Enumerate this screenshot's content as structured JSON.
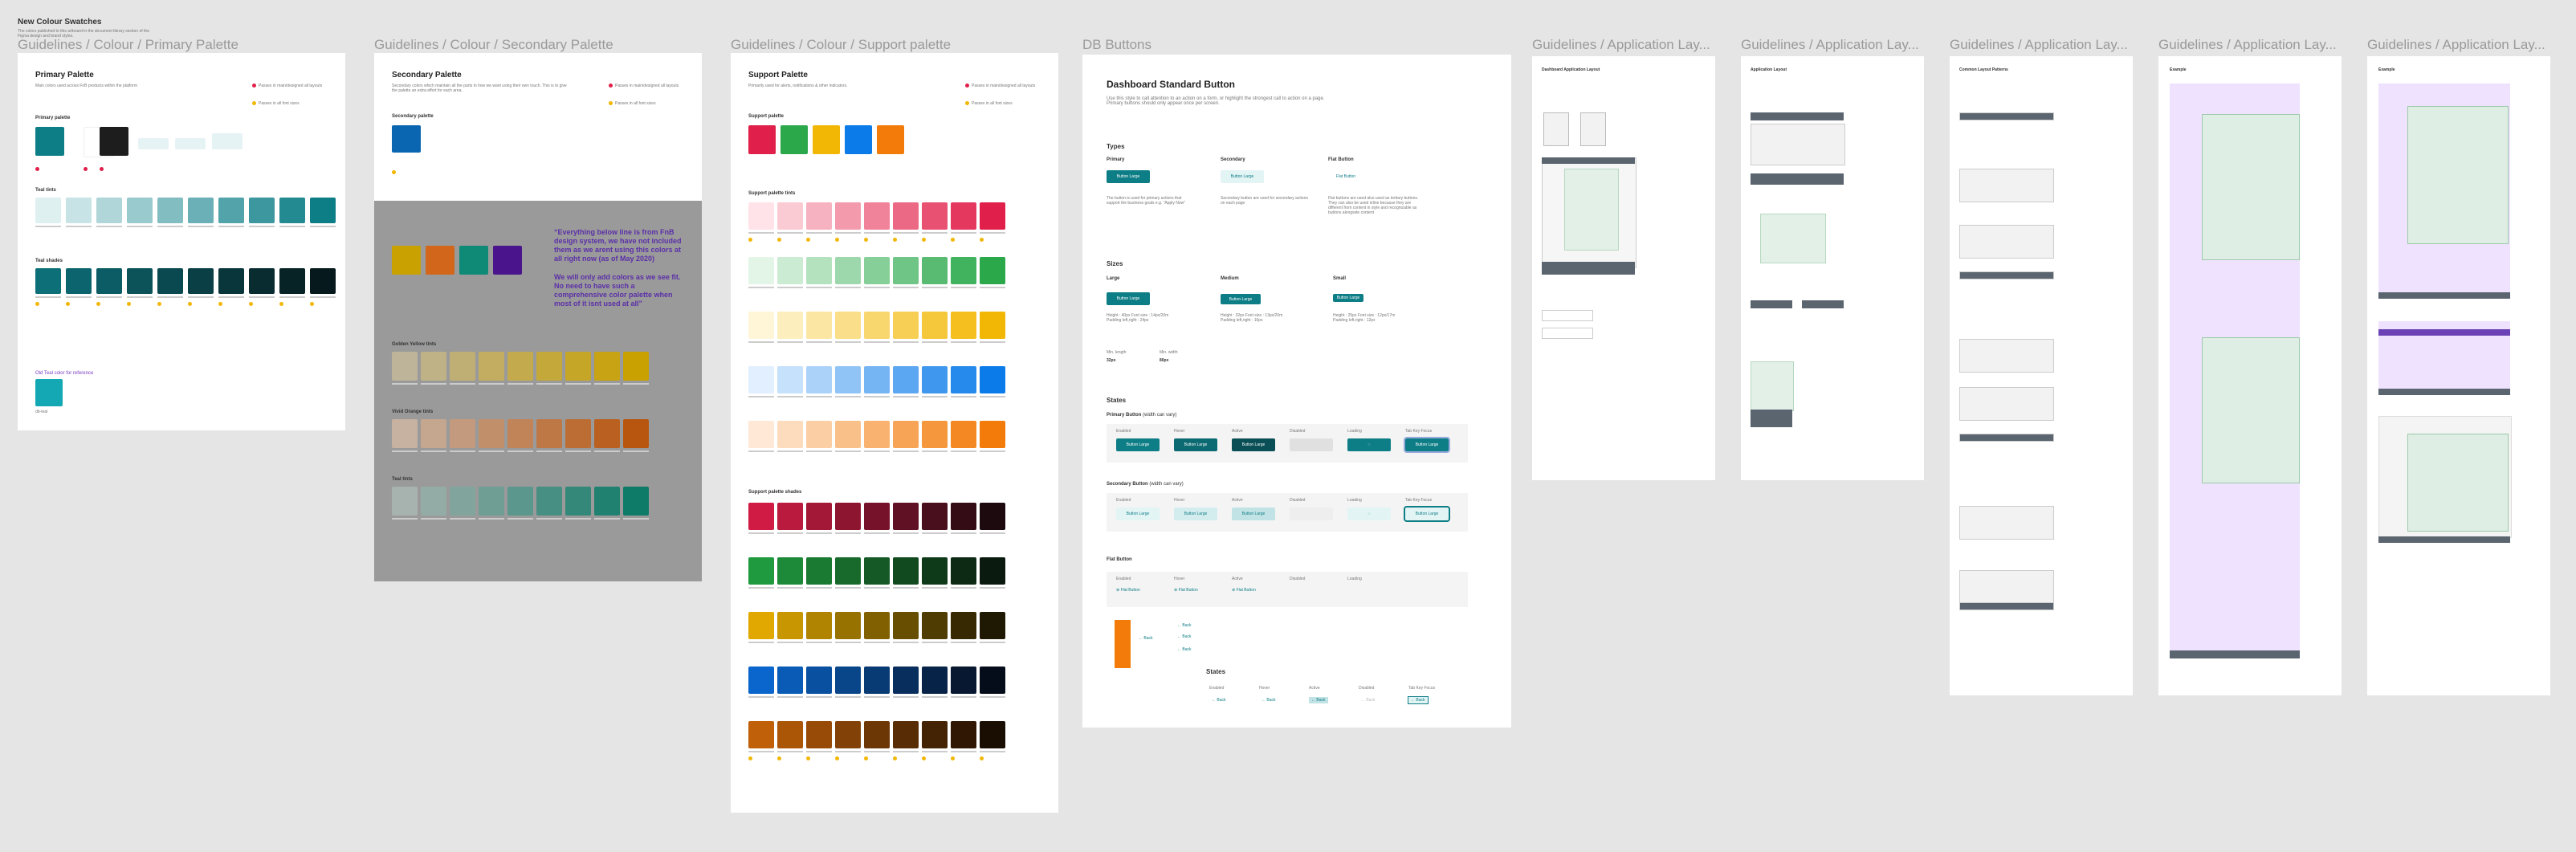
{
  "page": {
    "title": "New Colour Swatches",
    "subtitle_line1": "The colors published to this artboard in the document library section of the",
    "subtitle_line2": "Figma design and brand styles."
  },
  "frames": {
    "primary": {
      "label": "Guidelines / Colour / Primary Palette",
      "title": "Primary Palette",
      "desc": "Main colors used across FnB products within the platform",
      "primary_label": "Primary palette",
      "tints_label": "Teal tints",
      "shades_label": "Teal shades",
      "old_label": "Old Teal color for reference",
      "old_name": "db-teal",
      "legend_a": "Passes in main/designed all layouts",
      "legend_b": "Passes in all font sizes"
    },
    "secondary": {
      "label": "Guidelines / Colour / Secondary Palette",
      "title": "Secondary Palette",
      "desc": "Secondary colors which maintain all the parts in how we want using their own touch. This is to give the palette an extra effort for each area.",
      "palette_label": "Secondary palette",
      "quote_1": "“Everything below line is from FnB design system, we have not included them as we arent using this colors at all right now (as of May 2020)",
      "quote_2": "We will only add colors as we see fit. No need to have such a comprehensive color palette when most of it isnt used at all”",
      "golden_label": "Golden Yellow tints",
      "vivid_label": "Vivid Orange tints",
      "teal_label": "Teal tints",
      "legend_a": "Passes in main/designed all layouts",
      "legend_b": "Passes in all font sizes"
    },
    "support": {
      "label": "Guidelines / Colour / Support palette",
      "title": "Support Palette",
      "desc": "Primarily used for alerts, notifications & other indicators.",
      "palette_label": "Support palette",
      "tints_label": "Support palette tints",
      "shades_label": "Support palette shades",
      "legend_a": "Passes in main/designed all layouts",
      "legend_b": "Passes in all font sizes"
    },
    "buttons": {
      "label": "DB Buttons",
      "title": "Dashboard Standard Button",
      "desc": "Use this style to call attention to an action on a form, or highlight the strongest call to action on a page. Primary buttons should only appear once per screen.",
      "types_label": "Types",
      "type_primary": "Primary",
      "type_secondary": "Secondary",
      "type_flat": "Flat Button",
      "type_primary_desc": "The button is used for primary actions that support the business goals e.g. \"Apply Now\"",
      "type_secondary_desc": "Secondary button are used for secondary actions on each page",
      "type_flat_desc": "Flat buttons are used also used as tertiary buttons. They can also be used inline because they are different from content in style and recognizable as buttons alongside content",
      "sizes_label": "Sizes",
      "size_large": "Large",
      "size_medium": "Medium",
      "size_small": "Small",
      "size_large_spec": "Height : 40px Font size : 14px/20m Padding left,right : 24px",
      "size_medium_spec": "Height : 32px Font size : 13px/20m Padding left,right : 16px",
      "size_small_spec": "Height : 25px Font size : 12px/17m Padding left,right : 12px",
      "min_length": "Min. length",
      "max_width": "Min. width",
      "min_length_val": "32px",
      "max_width_val": "80px",
      "states_label": "States",
      "primary_states": "Primary Button",
      "primary_states_note": "(width can vary)",
      "secondary_states": "Secondary Button",
      "secondary_states_note": "(width can vary)",
      "flat_states": "Flat Button",
      "state_enabled": "Enabled",
      "state_hover": "Hover",
      "state_active": "Active",
      "state_disabled": "Disabled",
      "state_loading": "Loading",
      "state_tab": "Tab Key Focus",
      "button_label": "Button Large",
      "flat_label": "Flat Button",
      "back_label": "Back",
      "states_sub": "States"
    },
    "layout1": {
      "label": "Guidelines / Application Lay...",
      "title": "Dashboard Application Layout"
    },
    "layout2": {
      "label": "Guidelines / Application Lay...",
      "title": "Application Layout"
    },
    "layout3": {
      "label": "Guidelines / Application Lay...",
      "title": "Common Layout Patterns"
    },
    "layout4": {
      "label": "Guidelines / Application Lay...",
      "title": "Example"
    },
    "layout5": {
      "label": "Guidelines / Application Lay...",
      "title": "Example"
    }
  },
  "colors": {
    "teal": "#0d7d86",
    "teal_dark": "#0b4a52",
    "black": "#1d1d1d",
    "blue": "#0a66b0",
    "purple_text": "#7a3fc4",
    "green": "#2aa84a",
    "red": "#e0204a",
    "yellow": "#f2b705",
    "orange": "#f27b0a",
    "accent_purple": "#a259ff"
  }
}
